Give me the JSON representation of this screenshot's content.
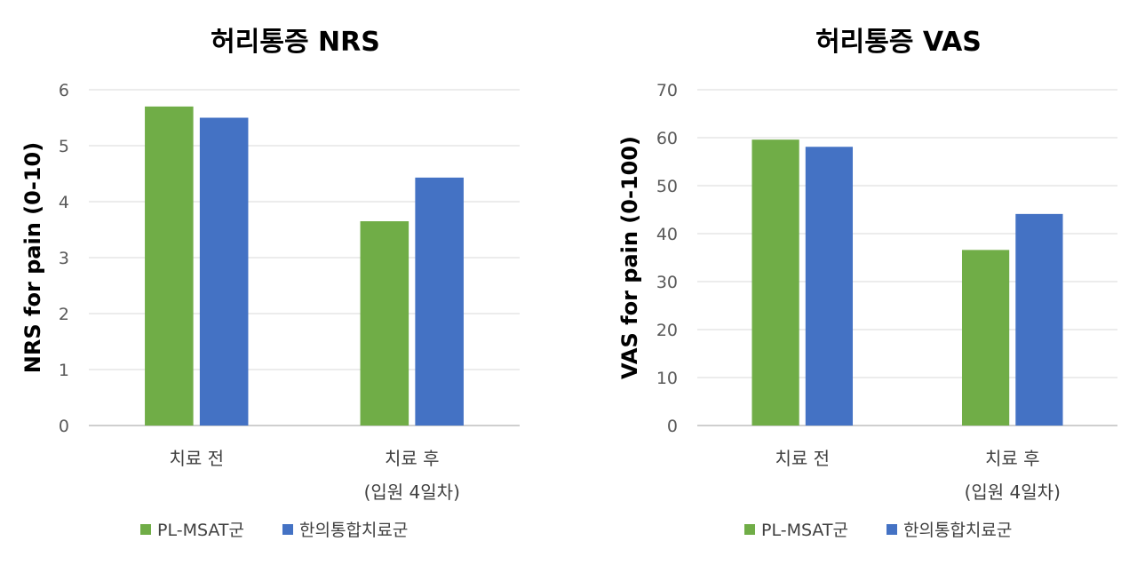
{
  "chart_data": [
    {
      "type": "bar",
      "title": "허리통증 NRS",
      "ylabel": "NRS for pain (0-10)",
      "xlabel": "",
      "ylim": [
        0,
        6
      ],
      "yticks": [
        0,
        1,
        2,
        3,
        4,
        5,
        6
      ],
      "categories": [
        {
          "lines": [
            "치료 전"
          ]
        },
        {
          "lines": [
            "치료 후",
            "(입원 4일차)"
          ]
        }
      ],
      "series": [
        {
          "name": "PL-MSAT군",
          "color": "#70ad47",
          "values": [
            5.7,
            3.65
          ]
        },
        {
          "name": "한의통합치료군",
          "color": "#4472c4",
          "values": [
            5.5,
            4.43
          ]
        }
      ],
      "grid": true,
      "legend": "bottom"
    },
    {
      "type": "bar",
      "title": "허리통증 VAS",
      "ylabel": "VAS for pain (0-100)",
      "xlabel": "",
      "ylim": [
        0,
        70
      ],
      "yticks": [
        0,
        10,
        20,
        30,
        40,
        50,
        60,
        70
      ],
      "categories": [
        {
          "lines": [
            "치료 전"
          ]
        },
        {
          "lines": [
            "치료 후",
            "(입원 4일차)"
          ]
        }
      ],
      "series": [
        {
          "name": "PL-MSAT군",
          "color": "#70ad47",
          "values": [
            59.6,
            36.6
          ]
        },
        {
          "name": "한의통합치료군",
          "color": "#4472c4",
          "values": [
            58.1,
            44.1
          ]
        }
      ],
      "grid": true,
      "legend": "bottom"
    }
  ]
}
